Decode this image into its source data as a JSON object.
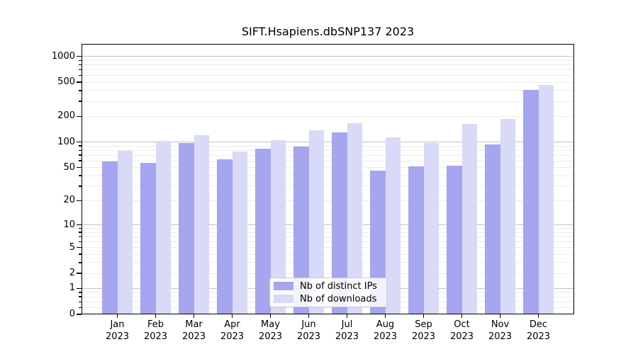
{
  "chart_data": {
    "type": "bar",
    "title": "SIFT.Hsapiens.dbSNP137 2023",
    "categories": [
      "Jan 2023",
      "Feb 2023",
      "Mar 2023",
      "Apr 2023",
      "May 2023",
      "Jun 2023",
      "Jul 2023",
      "Aug 2023",
      "Sep 2023",
      "Oct 2023",
      "Nov 2023",
      "Dec 2023"
    ],
    "series": [
      {
        "name": "Nb of distinct IPs",
        "color": "#a5a5f0",
        "values": [
          59,
          57,
          97,
          63,
          83,
          88,
          130,
          46,
          52,
          53,
          94,
          406
        ]
      },
      {
        "name": "Nb of downloads",
        "color": "#d9d9f8",
        "values": [
          79,
          103,
          121,
          78,
          106,
          138,
          168,
          114,
          97,
          164,
          185,
          465
        ]
      }
    ],
    "xlabel": "",
    "ylabel": "",
    "yscale": "log1p",
    "ylim": [
      0,
      1400
    ],
    "y_ticks": [
      1000,
      500,
      200,
      100,
      50,
      20,
      10,
      5,
      2,
      1,
      0
    ],
    "y_major_gridlines": [
      1,
      10,
      100,
      1000
    ],
    "y_minor_gridlines": [
      0.2,
      0.4,
      0.6,
      0.8,
      2,
      3,
      4,
      5,
      6,
      7,
      8,
      9,
      20,
      30,
      40,
      50,
      60,
      70,
      80,
      90,
      200,
      300,
      400,
      500,
      600,
      700,
      800,
      900
    ],
    "grid": true,
    "legend_position": "bottom-center"
  },
  "colors": {
    "major_grid": "#c2c2c2",
    "minor_grid": "#ececec",
    "spine": "#000000",
    "text": "#000000",
    "legend_border": "#cccccc"
  }
}
